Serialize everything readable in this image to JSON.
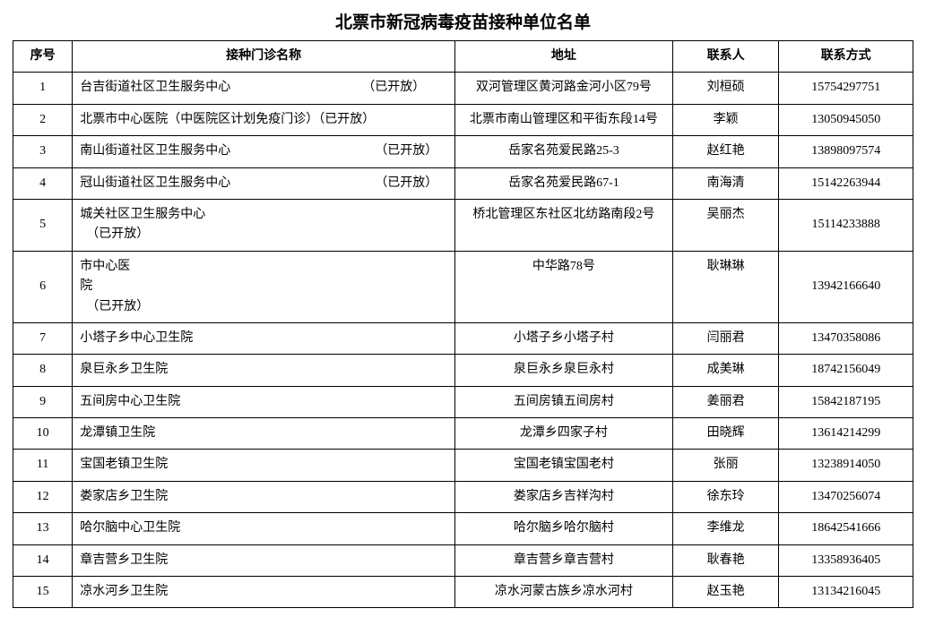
{
  "title": "北票市新冠病毒疫苗接种单位名单",
  "title_fontsize": 19,
  "body_fontsize": 14,
  "background_color": "#ffffff",
  "border_color": "#000000",
  "text_color": "#000000",
  "columns": [
    {
      "key": "seq",
      "label": "序号",
      "width": "6.6%",
      "align": "center"
    },
    {
      "key": "name",
      "label": "接种门诊名称",
      "width": "42.5%",
      "align": "left"
    },
    {
      "key": "addr",
      "label": "地址",
      "width": "24.2%",
      "align": "center"
    },
    {
      "key": "contact",
      "label": "联系人",
      "width": "11.8%",
      "align": "center"
    },
    {
      "key": "phone",
      "label": "联系方式",
      "width": "14.9%",
      "align": "center"
    }
  ],
  "rows": [
    {
      "seq": "1",
      "name": "台吉街道社区卫生服务中心　　　　　　　　　　　（已开放）",
      "addr": "双河管理区黄河路金河小区79号",
      "contact": "刘桓硕",
      "phone": "15754297751",
      "tall": true
    },
    {
      "seq": "2",
      "name": "北票市中心医院（中医院区计划免疫门诊）（已开放）",
      "addr": "北票市南山管理区和平街东段14号",
      "contact": "李颖",
      "phone": "13050945050",
      "tall": false
    },
    {
      "seq": "3",
      "name": "南山街道社区卫生服务中心　　　　　　　　　　　　（已开放）",
      "addr": "岳家名苑爱民路25-3",
      "contact": "赵红艳",
      "phone": "13898097574",
      "tall": true
    },
    {
      "seq": "4",
      "name": "冠山街道社区卫生服务中心　　　　　　　　　　　　（已开放）",
      "addr": "岳家名苑爱民路67-1",
      "contact": "南海清",
      "phone": "15142263944",
      "tall": true,
      "addr_top": true
    },
    {
      "seq": "5",
      "name": "城关社区卫生服务中心\n　（已开放）",
      "addr": "桥北管理区东社区北纺路南段2号",
      "contact": "吴丽杰",
      "phone": "15114233888",
      "tall": true,
      "addr_top": true,
      "contact_top": true,
      "multiline": true
    },
    {
      "seq": "6",
      "name": "市中心医\n院\n　（已开放）",
      "addr": "中华路78号",
      "contact": "耿琳琳",
      "phone": "13942166640",
      "tall": true,
      "addr_top": true,
      "contact_top": true,
      "multiline": true
    },
    {
      "seq": "7",
      "name": "小塔子乡中心卫生院",
      "addr": "小塔子乡小塔子村",
      "contact": "闫丽君",
      "phone": "13470358086",
      "tall": false
    },
    {
      "seq": "8",
      "name": "泉巨永乡卫生院",
      "addr": "泉巨永乡泉巨永村",
      "contact": "成美琳",
      "phone": "18742156049",
      "tall": false
    },
    {
      "seq": "9",
      "name": "五间房中心卫生院",
      "addr": "五间房镇五间房村",
      "contact": "姜丽君",
      "phone": "15842187195",
      "tall": false
    },
    {
      "seq": "10",
      "name": "龙潭镇卫生院",
      "addr": "龙潭乡四家子村",
      "contact": "田晓辉",
      "phone": "13614214299",
      "tall": false
    },
    {
      "seq": "11",
      "name": "宝国老镇卫生院",
      "addr": "宝国老镇宝国老村",
      "contact": "张丽",
      "phone": "13238914050",
      "tall": false
    },
    {
      "seq": "12",
      "name": "娄家店乡卫生院",
      "addr": "娄家店乡吉祥沟村",
      "contact": "徐东玲",
      "phone": "13470256074",
      "tall": false
    },
    {
      "seq": "13",
      "name": "哈尔脑中心卫生院",
      "addr": "哈尔脑乡哈尔脑村",
      "contact": "李维龙",
      "phone": "18642541666",
      "tall": false
    },
    {
      "seq": "14",
      "name": "章吉营乡卫生院",
      "addr": "章吉营乡章吉营村",
      "contact": "耿春艳",
      "phone": "13358936405",
      "tall": false
    },
    {
      "seq": "15",
      "name": "凉水河乡卫生院",
      "addr": "凉水河蒙古族乡凉水河村",
      "contact": "赵玉艳",
      "phone": "13134216045",
      "tall": false
    }
  ]
}
